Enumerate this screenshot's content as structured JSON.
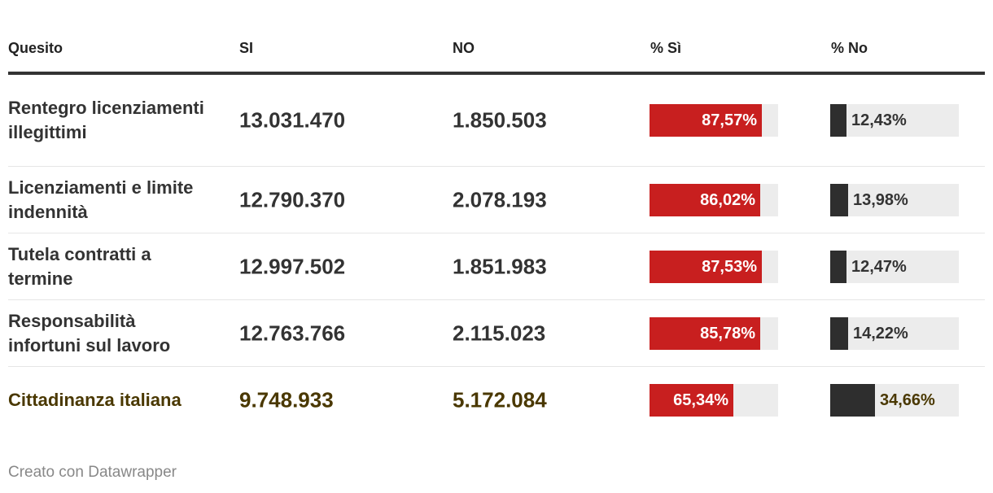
{
  "chart_data": {
    "type": "table",
    "columns": [
      "Quesito",
      "SI",
      "NO",
      "% Sì",
      "% No"
    ],
    "rows": [
      {
        "quesito": "Rentegro licenziamenti illegittimi",
        "si": "13.031.470",
        "no": "1.850.503",
        "pct_si": 87.57,
        "pct_si_label": "87,57%",
        "pct_no": 12.43,
        "pct_no_label": "12,43%",
        "highlight": false
      },
      {
        "quesito": "Licenziamenti e limite indennità",
        "si": "12.790.370",
        "no": "2.078.193",
        "pct_si": 86.02,
        "pct_si_label": "86,02%",
        "pct_no": 13.98,
        "pct_no_label": "13,98%",
        "highlight": false
      },
      {
        "quesito": "Tutela contratti a termine",
        "si": "12.997.502",
        "no": "1.851.983",
        "pct_si": 87.53,
        "pct_si_label": "87,53%",
        "pct_no": 12.47,
        "pct_no_label": "12,47%",
        "highlight": false
      },
      {
        "quesito": "Responsabilità infortuni sul lavoro",
        "si": "12.763.766",
        "no": "2.115.023",
        "pct_si": 85.78,
        "pct_si_label": "85,78%",
        "pct_no": 14.22,
        "pct_no_label": "14,22%",
        "highlight": false
      },
      {
        "quesito": "Cittadinanza italiana",
        "si": "9.748.933",
        "no": "5.172.084",
        "pct_si": 65.34,
        "pct_si_label": "65,34%",
        "pct_no": 34.66,
        "pct_no_label": "34,66%",
        "highlight": true
      }
    ]
  },
  "colors": {
    "si_bar": "#c81f1f",
    "no_bar": "#2e2e2e",
    "bar_track": "#ececec",
    "highlight_text": "#4a3800"
  },
  "footer": {
    "credit": "Creato con Datawrapper"
  }
}
